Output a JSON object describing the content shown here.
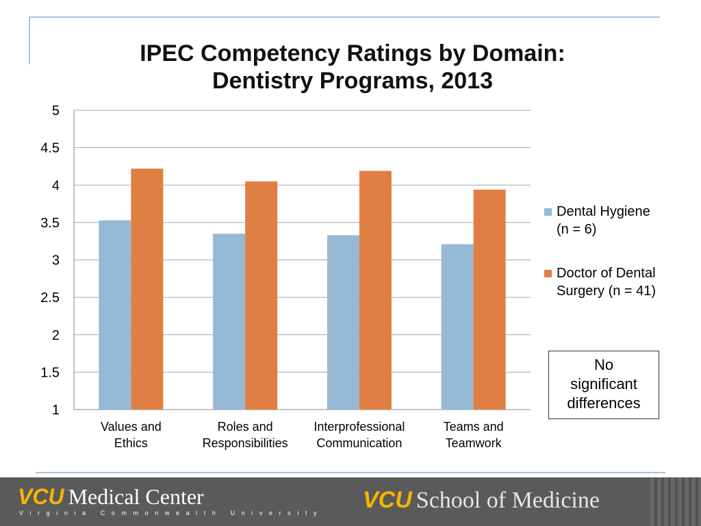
{
  "chart_data": {
    "type": "bar",
    "title": [
      "IPEC Competency Ratings by Domain:",
      "Dentistry Programs, 2013"
    ],
    "categories": [
      [
        "Values and",
        "Ethics"
      ],
      [
        "Roles and",
        "Responsibilities"
      ],
      [
        "Interprofessional",
        "Communication"
      ],
      [
        "Teams and",
        "Teamwork"
      ]
    ],
    "series": [
      {
        "name": [
          "Dental Hygiene",
          "(n = 6)"
        ],
        "color": "#96b9d6",
        "values": [
          3.53,
          3.35,
          3.33,
          3.21
        ]
      },
      {
        "name": [
          "Doctor of Dental",
          "Surgery (n = 41)"
        ],
        "color": "#e07f44",
        "values": [
          4.22,
          4.05,
          4.19,
          3.94
        ]
      }
    ],
    "ylim": [
      1,
      5
    ],
    "yticks": [
      "1",
      "1.5",
      "2",
      "2.5",
      "3",
      "3.5",
      "4",
      "4.5",
      "5"
    ],
    "grid": true,
    "legend_position": "right",
    "annotation": [
      "No",
      "significant",
      "differences"
    ]
  },
  "footer": {
    "logo_left_brand": "VCU",
    "logo_left_text": "Medical Center",
    "logo_left_sub": "Virginia Commonwealth University",
    "logo_right_brand": "VCU",
    "logo_right_text": "School of Medicine"
  }
}
